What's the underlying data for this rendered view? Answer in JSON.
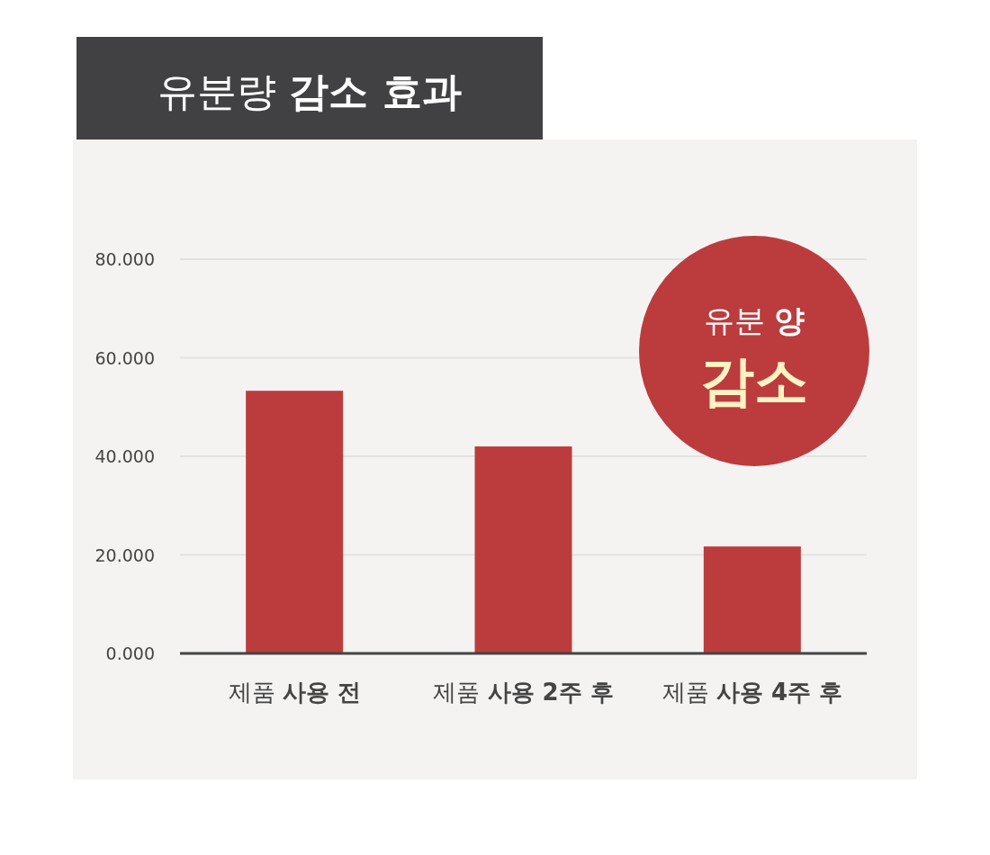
{
  "chart_data": {
    "type": "bar",
    "title": "유분량 **감소 효과**",
    "categories": [
      "제품 **사용 전**",
      "제품 **사용 2주 후**",
      "제품 **사용 4주 후**"
    ],
    "values": [
      53.3,
      42.0,
      21.7
    ],
    "color": "#bc3c3d",
    "ylim": [
      0,
      80
    ],
    "yticks": [
      {
        "value": 0,
        "label": "0.000"
      },
      {
        "value": 20,
        "label": "20.000"
      },
      {
        "value": 40,
        "label": "40.000"
      },
      {
        "value": 60,
        "label": "60.000"
      },
      {
        "value": 80,
        "label": "80.000"
      }
    ],
    "grid": "y",
    "annotations": [
      "유분 **양**",
      "감소"
    ]
  }
}
